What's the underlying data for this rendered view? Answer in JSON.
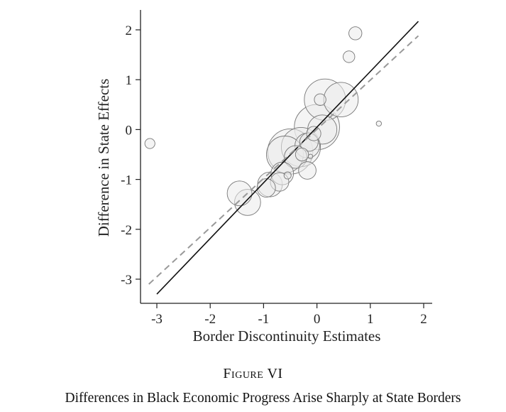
{
  "figure": {
    "label": "Figure VI",
    "caption": "Differences in Black Economic Progress Arise Sharply at State Borders"
  },
  "chart_data": {
    "type": "scatter",
    "xlabel": "Border Discontinuity Estimates",
    "ylabel": "Difference in State Effects",
    "xlim": [
      -3.3,
      2.15
    ],
    "ylim": [
      -3.5,
      2.4
    ],
    "xticks": [
      -3,
      -2,
      -1,
      0,
      1,
      2
    ],
    "yticks": [
      -3,
      -2,
      -1,
      0,
      1,
      2
    ],
    "grid": false,
    "legend": "none",
    "colors": {
      "marker_fill": "#ebebeb",
      "marker_stroke": "#777777",
      "fit_line": "#111111",
      "reference_line": "#999999"
    },
    "lines": [
      {
        "style": "solid",
        "x": [
          -3.0,
          1.9
        ],
        "y": [
          -3.3,
          2.17
        ]
      },
      {
        "style": "dashed",
        "x": [
          -3.15,
          1.9
        ],
        "y": [
          -3.1,
          1.88
        ]
      }
    ],
    "points": [
      {
        "x": -3.13,
        "y": -0.28,
        "weight": 0.3
      },
      {
        "x": 0.72,
        "y": 1.93,
        "weight": 0.5
      },
      {
        "x": 0.6,
        "y": 1.46,
        "weight": 0.4
      },
      {
        "x": 1.16,
        "y": 0.12,
        "weight": 0.08
      },
      {
        "x": 0.15,
        "y": 0.6,
        "weight": 5.0
      },
      {
        "x": 0.45,
        "y": 0.6,
        "weight": 3.5
      },
      {
        "x": 0.06,
        "y": 0.6,
        "weight": 0.4
      },
      {
        "x": 0.0,
        "y": 0.05,
        "weight": 6.0
      },
      {
        "x": 0.1,
        "y": 0.0,
        "weight": 2.5
      },
      {
        "x": -0.06,
        "y": -0.08,
        "weight": 0.6
      },
      {
        "x": -0.18,
        "y": -0.32,
        "weight": 1.8
      },
      {
        "x": -0.15,
        "y": -0.25,
        "weight": 1.0
      },
      {
        "x": -0.12,
        "y": -0.54,
        "weight": 0.06
      },
      {
        "x": -0.3,
        "y": -0.35,
        "weight": 4.5
      },
      {
        "x": -0.28,
        "y": -0.5,
        "weight": 0.5
      },
      {
        "x": -0.5,
        "y": -0.44,
        "weight": 6.0
      },
      {
        "x": -0.6,
        "y": -0.5,
        "weight": 4.0
      },
      {
        "x": -0.4,
        "y": -0.55,
        "weight": 1.5
      },
      {
        "x": -0.18,
        "y": -0.82,
        "weight": 0.9
      },
      {
        "x": -0.65,
        "y": -0.88,
        "weight": 1.5
      },
      {
        "x": -0.55,
        "y": -0.92,
        "weight": 0.15
      },
      {
        "x": -0.7,
        "y": -1.05,
        "weight": 1.0
      },
      {
        "x": -0.88,
        "y": -1.1,
        "weight": 1.8
      },
      {
        "x": -0.95,
        "y": -1.17,
        "weight": 1.0
      },
      {
        "x": -1.3,
        "y": -1.46,
        "weight": 2.0
      },
      {
        "x": -1.45,
        "y": -1.28,
        "weight": 1.8
      }
    ]
  }
}
